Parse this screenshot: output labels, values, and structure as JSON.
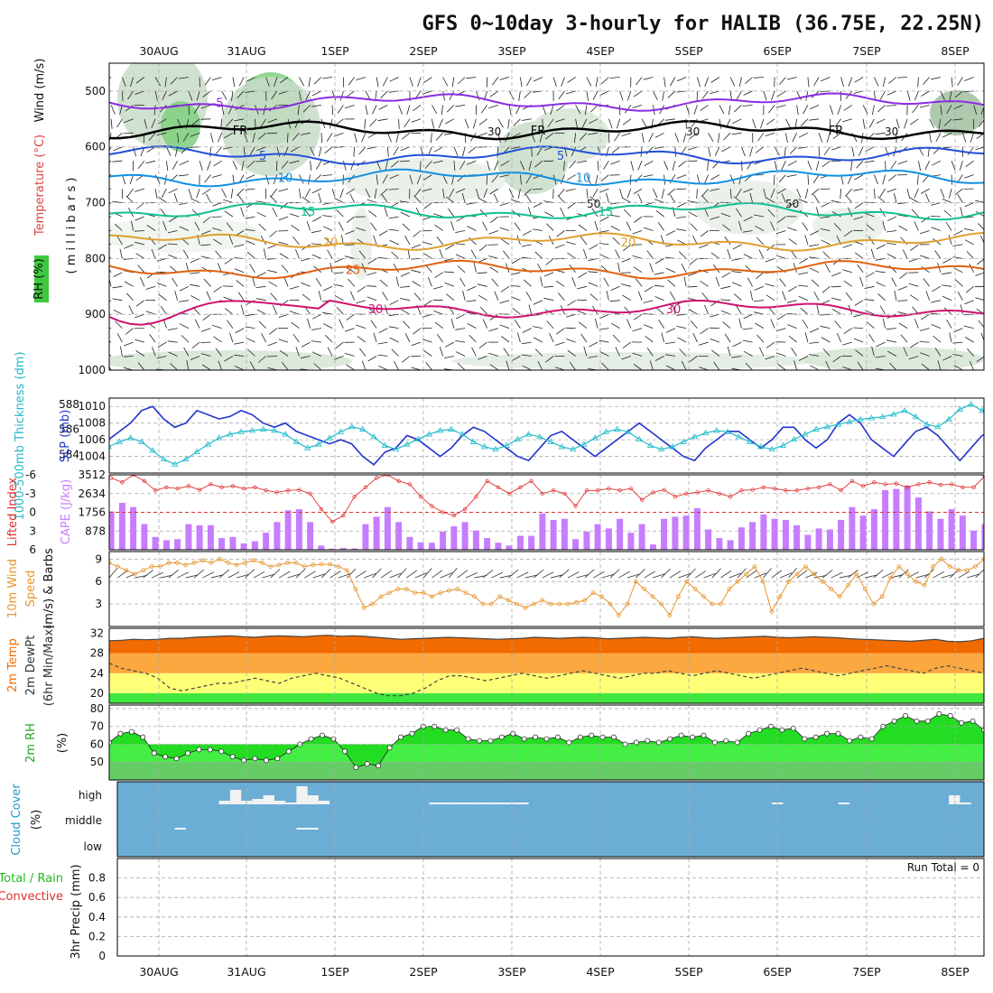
{
  "title": "GFS 0~10day 3-hourly for HALIB (36.75E, 22.25N)",
  "dates": [
    "30AUG",
    "31AUG",
    "1SEP",
    "2SEP",
    "3SEP",
    "4SEP",
    "5SEP",
    "6SEP",
    "7SEP",
    "8SEP"
  ],
  "colors": {
    "cloud_bg": "#6aaed6",
    "cape_bar": "#c77dff",
    "wind": "#e8962f",
    "temp_dark": "#f26b00",
    "temp_mid": "#fba840",
    "yellow": "#ffff77",
    "green": "#3ee83e",
    "rh_fill": "#22dd22",
    "thick": "#22bbcc",
    "slp": "#2233cc",
    "li": "#e03030"
  },
  "chart_data": [
    {
      "type": "heatmap",
      "name": "upper-air",
      "ylabel_parts": [
        "RH (%)",
        "Temperature (°C)",
        "Wind (m/s)"
      ],
      "ylabel_unit": "( m i l l i b a r s )",
      "ylim": [
        1000,
        450
      ],
      "yticks": [
        500,
        600,
        700,
        800,
        900,
        1000
      ],
      "isotherms": [
        {
          "label": "-5",
          "color": "#8a2be2",
          "level": 520,
          "labels_at": [
            "-5"
          ]
        },
        {
          "label": "FR",
          "color": "#000000",
          "level": 570,
          "labels_at": [
            "FR",
            "FR",
            "FR"
          ]
        },
        {
          "label": "5",
          "color": "#1f4fd8",
          "level": 615,
          "labels_at": [
            "5",
            "5"
          ]
        },
        {
          "label": "10",
          "color": "#1090e0",
          "level": 655,
          "labels_at": [
            "10",
            "10"
          ]
        },
        {
          "label": "15",
          "color": "#10c090",
          "level": 715,
          "labels_at": [
            "15",
            "15"
          ]
        },
        {
          "label": "20",
          "color": "#e0a030",
          "level": 770,
          "labels_at": [
            "20",
            "20"
          ]
        },
        {
          "label": "25",
          "color": "#e06010",
          "level": 820,
          "labels_at": [
            "25"
          ]
        },
        {
          "label": "30",
          "color": "#d01070",
          "level": 890,
          "labels_at": [
            "30",
            "30"
          ]
        }
      ],
      "rh_labels": [
        "30",
        "50",
        "30",
        "50",
        "30"
      ]
    },
    {
      "type": "line",
      "name": "thickness-slp",
      "ylabel_left": "1000-500mb Thickness (dm)",
      "ylabel_right": "SLP (mb)",
      "yticks_left": [
        584,
        586,
        588
      ],
      "yticks_right": [
        1004,
        1006,
        1008,
        1010
      ],
      "ylim_right": [
        1002,
        1011
      ],
      "ylim_left": [
        582.5,
        588.5
      ],
      "series": [
        {
          "name": "SLP",
          "values": [
            1006,
            1007,
            1008,
            1009.5,
            1010,
            1008.5,
            1007.5,
            1008,
            1009.5,
            1009,
            1008.5,
            1008.8,
            1009.5,
            1009,
            1008,
            1007.5,
            1008,
            1007,
            1006.5,
            1006,
            1005.5,
            1006,
            1005.5,
            1004,
            1003,
            1004.5,
            1005,
            1006.5,
            1006,
            1005,
            1004,
            1005,
            1006.5,
            1007.5,
            1007,
            1006,
            1005,
            1004,
            1003.5,
            1005,
            1006.5,
            1007,
            1006,
            1005,
            1004,
            1005,
            1006,
            1007,
            1008,
            1007,
            1006,
            1005,
            1004,
            1003.5,
            1005,
            1006,
            1007,
            1007,
            1006,
            1005,
            1006,
            1007.5,
            1007.5,
            1006,
            1005,
            1006,
            1008,
            1009,
            1008,
            1006,
            1005,
            1004,
            1005.5,
            1007,
            1007.5,
            1006.5,
            1005,
            1003.5,
            1005,
            1006.5,
            1007,
            1005.5,
            1004.5,
            1006,
            1007
          ]
        },
        {
          "name": "Thickness",
          "values": [
            584.6,
            585.0,
            585.3,
            585.0,
            584.3,
            583.6,
            583.2,
            583.6,
            584.2,
            584.8,
            585.3,
            585.6,
            585.8,
            585.9,
            586.0,
            585.9,
            585.6,
            585.0,
            584.5,
            584.8,
            585.3,
            585.8,
            586.2,
            586.0,
            585.4,
            584.7,
            584.4,
            584.8,
            585.2,
            585.6,
            585.9,
            586.0,
            585.6,
            585.0,
            584.6,
            584.4,
            584.7,
            585.2,
            585.6,
            585.4,
            585.0,
            584.6,
            584.4,
            584.8,
            585.3,
            585.8,
            586.0,
            585.8,
            585.2,
            584.7,
            584.4,
            584.6,
            585.0,
            585.4,
            585.7,
            585.9,
            585.8,
            585.4,
            585.0,
            584.6,
            584.4,
            584.7,
            585.2,
            585.6,
            586.0,
            586.2,
            586.4,
            586.6,
            586.8,
            586.9,
            587.0,
            587.2,
            587.5,
            587.0,
            586.4,
            586.2,
            586.8,
            587.6,
            588.0,
            587.5,
            586.9,
            586.5,
            586.2,
            585.8,
            585.5
          ]
        }
      ]
    },
    {
      "type": "bar",
      "name": "cape-li",
      "ylabel_left": "Lifted Index",
      "ylabel_right": "CAPE (J/kg)",
      "yticks_left": [
        "-6",
        "-3",
        "0",
        "3",
        "6"
      ],
      "yticks_right": [
        "3512",
        "2634",
        "1756",
        "878"
      ],
      "ylim_cape": [
        0,
        3512
      ],
      "ylim_li": [
        6,
        -6
      ],
      "cape": [
        1800,
        2200,
        2000,
        1200,
        600,
        450,
        500,
        1200,
        1150,
        1150,
        550,
        600,
        300,
        400,
        800,
        1300,
        1850,
        1900,
        1300,
        200,
        50,
        80,
        60,
        1200,
        1550,
        2000,
        1300,
        600,
        350,
        330,
        850,
        1100,
        1300,
        900,
        550,
        330,
        200,
        650,
        650,
        1700,
        1400,
        1450,
        500,
        850,
        1200,
        1000,
        1450,
        800,
        1200,
        250,
        1450,
        1550,
        1600,
        1950,
        950,
        550,
        450,
        1050,
        1300,
        1650,
        1450,
        1400,
        1150,
        700,
        1000,
        950,
        1400,
        2000,
        1600,
        1900,
        2800,
        2850,
        3000,
        2450,
        1800,
        1450,
        1900,
        1600,
        900,
        1200
      ],
      "li": [
        -5.5,
        -4.8,
        -6,
        -5,
        -3.5,
        -4,
        -3.8,
        -4.2,
        -3.6,
        -4.5,
        -4,
        -4.2,
        -3.8,
        -4,
        -3.5,
        -3.2,
        -3.5,
        -3.6,
        -3,
        -0.5,
        1.5,
        0.5,
        -2.5,
        -4,
        -5.5,
        -6,
        -5,
        -4.5,
        -2.5,
        -1,
        0,
        0.5,
        -0.5,
        -2.5,
        -5,
        -4,
        -3,
        -4,
        -5,
        -3,
        -3.5,
        -3,
        -1,
        -3.5,
        -3.5,
        -3.8,
        -3.5,
        -3.8,
        -2,
        -3.2,
        -3.6,
        -2.5,
        -3,
        -3.2,
        -3.5,
        -3,
        -2.5,
        -3.5,
        -3.6,
        -4,
        -3.8,
        -3.5,
        -3.5,
        -3.8,
        -4,
        -4.5,
        -3.5,
        -5,
        -4.2,
        -4.8,
        -4.5,
        -4.6,
        -4,
        -4.5,
        -4.8,
        -4.4,
        -4.5,
        -4,
        -4,
        -5.8
      ]
    },
    {
      "type": "line",
      "name": "wind10m",
      "ylabel": "10m Wind Speed (m/s) & Barbs",
      "yticks": [
        3,
        6,
        9
      ],
      "ylim": [
        0,
        10
      ],
      "values": [
        8.5,
        8,
        7.5,
        7,
        7.5,
        8,
        8,
        8.5,
        8.5,
        8.2,
        8.5,
        8.8,
        8.5,
        9,
        8.5,
        8.2,
        8.5,
        8.8,
        8.5,
        8,
        8.2,
        8.5,
        8.5,
        8,
        8.2,
        8.3,
        8.3,
        8,
        7.5,
        5,
        2.5,
        3,
        4,
        4.5,
        5,
        5,
        4.5,
        4.5,
        4,
        4.5,
        4.8,
        5,
        4.5,
        4,
        3,
        3,
        4,
        3.5,
        3,
        2.5,
        3,
        3.5,
        3,
        3,
        3,
        3.2,
        3.5,
        4.5,
        4,
        3,
        1.5,
        3,
        6,
        5,
        4,
        3,
        1.5,
        4,
        6,
        5,
        4,
        3,
        3,
        5,
        6,
        7,
        8,
        6,
        2,
        4,
        6,
        7,
        8,
        7,
        6,
        5,
        4,
        5.5,
        7,
        5,
        3,
        4,
        6.5,
        8,
        7,
        6,
        5.5,
        8,
        9,
        8,
        7.5,
        7.5,
        8,
        9
      ]
    },
    {
      "type": "area",
      "name": "temp-dewpt",
      "ylabel": "2m Temp 2m DewPt (6hr Min/Max)",
      "yticks": [
        20,
        24,
        28,
        32
      ],
      "ylim": [
        18,
        33
      ],
      "temp": [
        30.5,
        30.6,
        30.8,
        30.7,
        30.8,
        31,
        31,
        31.2,
        31.3,
        31.4,
        31.5,
        31.3,
        31.2,
        31.4,
        31.5,
        31.4,
        31.3,
        31.5,
        31.6,
        31.4,
        31.5,
        31.4,
        31.2,
        31,
        30.8,
        30.9,
        31,
        31.1,
        31.2,
        31.1,
        31,
        30.9,
        30.8,
        30.9,
        31,
        31.2,
        31.1,
        31,
        31.1,
        31.2,
        31.1,
        30.9,
        31,
        31.1,
        31.2,
        31.1,
        31,
        31.2,
        31.3,
        31.1,
        31,
        31.1,
        31.2,
        31.3,
        31.4,
        31.2,
        31.1,
        31.2,
        31.3,
        31.2,
        31.1,
        30.9,
        30.8,
        30.7,
        30.6,
        30.5,
        30.4,
        30.6,
        30.8,
        30.4,
        30.3,
        30.5,
        31
      ],
      "dew": [
        26,
        25,
        24.5,
        24,
        23,
        21,
        20.5,
        21,
        21.5,
        22,
        22,
        22.5,
        23,
        22.5,
        22,
        23,
        23.5,
        24,
        23.5,
        23,
        22,
        21,
        20,
        19.5,
        19.5,
        20,
        21,
        22.5,
        23.5,
        23.5,
        23,
        22.5,
        23,
        23.5,
        24,
        23.5,
        23,
        23.5,
        24,
        24.5,
        24,
        23.5,
        23,
        23.5,
        24,
        24,
        24.5,
        24,
        23.5,
        24,
        24.5,
        24,
        23.5,
        23,
        23.5,
        24,
        24.5,
        25,
        24.5,
        24,
        23.5,
        24,
        24.5,
        25,
        25.5,
        25,
        24.5,
        24,
        25,
        25.5,
        25,
        24.5,
        24
      ]
    },
    {
      "type": "area",
      "name": "rh2m",
      "ylabel": "2m RH (%)",
      "yticks": [
        50,
        60,
        70,
        80
      ],
      "ylim": [
        40,
        82
      ],
      "values": [
        61,
        66,
        67,
        64,
        55,
        53,
        52,
        55,
        57,
        57,
        56,
        53,
        51,
        52,
        51,
        52,
        56,
        60,
        63,
        65,
        63,
        56,
        47,
        49,
        48,
        58,
        64,
        66,
        70,
        70,
        68,
        68,
        63,
        62,
        62,
        64,
        66,
        63,
        64,
        63,
        64,
        61,
        64,
        65,
        64,
        64,
        60,
        61,
        62,
        61,
        63,
        65,
        64,
        65,
        61,
        62,
        61,
        66,
        68,
        70,
        68,
        69,
        63,
        64,
        66,
        66,
        62,
        64,
        63,
        70,
        73,
        76,
        73,
        73,
        77,
        76,
        72,
        73,
        68
      ]
    },
    {
      "type": "bar",
      "name": "cloud",
      "ylabel": "Cloud Cover (%)",
      "ytick_labels": [
        "high",
        "middle",
        "low"
      ],
      "high": [
        0,
        0,
        0,
        0,
        0,
        0,
        0,
        0,
        0,
        0,
        0.2,
        0.8,
        0.2,
        0.3,
        0.5,
        0.2,
        0.1,
        1,
        0.5,
        0.2,
        0,
        0,
        0,
        0,
        0,
        0,
        0,
        0,
        0,
        0.1,
        0.1,
        0.1,
        0.1,
        0.1,
        0.1,
        0.1,
        0.1,
        0.1,
        0,
        0,
        0,
        0,
        0,
        0,
        0,
        0,
        0,
        0,
        0,
        0,
        0,
        0,
        0,
        0,
        0,
        0,
        0,
        0,
        0,
        0,
        0.1,
        0,
        0,
        0,
        0,
        0,
        0.1,
        0,
        0,
        0,
        0,
        0,
        0,
        0,
        0,
        0,
        0.5,
        0.1,
        0,
        0,
        0,
        0,
        0,
        0,
        0,
        0,
        0.1
      ],
      "middle": [
        0,
        0,
        0,
        0,
        0,
        0,
        0.1,
        0,
        0,
        0,
        0,
        0,
        0,
        0,
        0,
        0,
        0,
        0.1,
        0.1,
        0,
        0,
        0,
        0,
        0,
        0,
        0,
        0,
        0,
        0,
        0,
        0,
        0,
        0,
        0,
        0,
        0,
        0,
        0,
        0,
        0,
        0,
        0,
        0,
        0,
        0,
        0,
        0,
        0,
        0,
        0,
        0,
        0,
        0,
        0,
        0,
        0,
        0,
        0,
        0,
        0,
        0,
        0,
        0,
        0,
        0,
        0,
        0,
        0,
        0,
        0,
        0,
        0,
        0,
        0,
        0,
        0,
        0,
        0,
        0,
        0,
        0,
        0,
        0,
        0,
        0,
        0,
        0
      ],
      "low": []
    },
    {
      "type": "line",
      "name": "precip",
      "ylabel_parts": [
        "Total / Rain",
        "Convective",
        "3hr Precip (mm)"
      ],
      "yticks": [
        "0",
        "0.2",
        "0.4",
        "0.6",
        "0.8"
      ],
      "ylim": [
        0,
        1
      ],
      "run_total_label": "Run Total = 0",
      "values": []
    }
  ]
}
